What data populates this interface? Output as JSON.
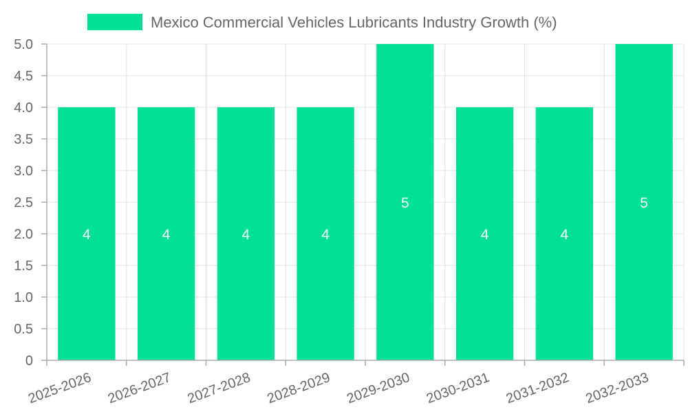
{
  "chart_data": {
    "type": "bar",
    "categories": [
      "2025-2026",
      "2026-2027",
      "2027-2028",
      "2028-2029",
      "2029-2030",
      "2030-2031",
      "2031-2032",
      "2032-2033"
    ],
    "series": [
      {
        "name": "Mexico Commercial Vehicles Lubricants Industry Growth (%)",
        "values": [
          4,
          4,
          4,
          4,
          5,
          4,
          4,
          5
        ]
      }
    ],
    "data_labels": [
      "4",
      "4",
      "4",
      "4",
      "5",
      "4",
      "4",
      "5"
    ],
    "y_ticks": [
      "0",
      "0.5",
      "1.0",
      "1.5",
      "2.0",
      "2.5",
      "3.0",
      "3.5",
      "4.0",
      "4.5",
      "5.0"
    ],
    "ylim": [
      0,
      5
    ],
    "grid": true,
    "legend_position": "top",
    "colors": {
      "bar": "#00e096",
      "grid": "#e0e0e0",
      "axis": "#aaaaaa",
      "text": "#666666",
      "label": "#ffffff"
    }
  }
}
